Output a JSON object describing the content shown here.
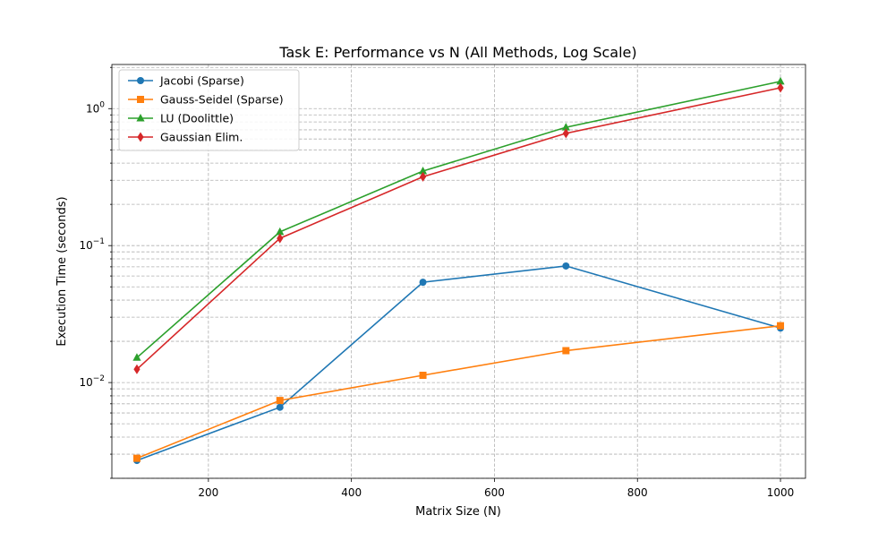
{
  "chart_data": {
    "type": "line",
    "title": "Task E: Performance vs N (All Methods, Log Scale)",
    "xlabel": "Matrix Size (N)",
    "ylabel": "Execution Time (seconds)",
    "yscale": "log",
    "grid": true,
    "legend_position": "upper-left",
    "xlim": [
      65,
      1035
    ],
    "ylim": [
      0.002,
      2.1
    ],
    "x_ticks": [
      200,
      400,
      600,
      800,
      1000
    ],
    "x_tick_labels": [
      "200",
      "400",
      "600",
      "800",
      "1000"
    ],
    "y_major_ticks": [
      0.01,
      0.1,
      1
    ],
    "y_tick_labels": [
      {
        "base": "10",
        "exp": "−2"
      },
      {
        "base": "10",
        "exp": "−1"
      },
      {
        "base": "10",
        "exp": "0"
      }
    ],
    "x": [
      100,
      300,
      500,
      700,
      1000
    ],
    "series": [
      {
        "name": "Jacobi (Sparse)",
        "color": "#1f77b4",
        "marker": "circle",
        "values": [
          0.0027,
          0.0066,
          0.054,
          0.071,
          0.025
        ]
      },
      {
        "name": "Gauss-Seidel (Sparse)",
        "color": "#ff7f0e",
        "marker": "square",
        "values": [
          0.0028,
          0.0074,
          0.0113,
          0.0171,
          0.026
        ]
      },
      {
        "name": "LU (Doolittle)",
        "color": "#2ca02c",
        "marker": "triangle",
        "values": [
          0.0152,
          0.126,
          0.35,
          0.73,
          1.58
        ]
      },
      {
        "name": "Gaussian Elim.",
        "color": "#d62728",
        "marker": "diamond",
        "values": [
          0.0125,
          0.113,
          0.318,
          0.66,
          1.42
        ]
      }
    ]
  }
}
